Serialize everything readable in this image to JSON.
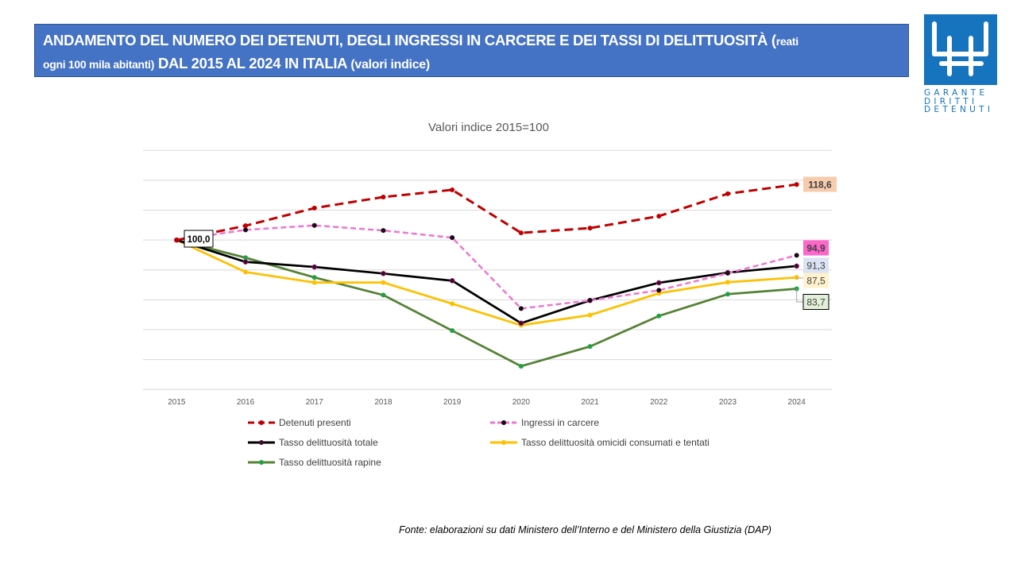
{
  "header": {
    "title_main": "ANDAMENTO DEL NUMERO DEI DETENUTI, DEGLI INGRESSI IN CARCERE  E DEI TASSI DI DELITTUOSITÀ (",
    "title_small_1": "reati",
    "title_small_2": "ogni 100 mila abitanti)",
    "title_line2_main": " DAL 2015 AL 2024 IN ITALIA ",
    "title_line2_tail": "(valori indice)",
    "background_color": "#4472c4"
  },
  "logo": {
    "lines": [
      "GARANTE",
      "DIRITTI",
      "DETENUTI"
    ],
    "icon": "garante-h-logo-icon",
    "color": "#1673bd"
  },
  "source_note": "Fonte: elaborazioni su dati Ministero dell’Interno e  del Ministero della Giustizia (DAP)",
  "chart_data": {
    "type": "line",
    "title": "Valori indice 2015=100",
    "xlabel": "",
    "ylabel": "",
    "x": [
      "2015",
      "2016",
      "2017",
      "2018",
      "2019",
      "2020",
      "2021",
      "2022",
      "2023",
      "2024"
    ],
    "ylim": [
      50,
      130
    ],
    "ytick_step": 10,
    "y_tick_labels_visible": false,
    "grid": true,
    "legend_position": "bottom",
    "series": [
      {
        "name": "Detenuti presenti",
        "color": "#c00000",
        "marker_color": "#c00000",
        "dash": "long-dash",
        "values": [
          100.0,
          104.8,
          110.7,
          114.4,
          116.8,
          102.4,
          104.0,
          108.0,
          115.5,
          118.6
        ],
        "end_label": "118,6",
        "end_label_bg": "#f8cbad",
        "end_label_border": "none"
      },
      {
        "name": "Ingressi in carcere",
        "color": "#ee76d0",
        "marker_color": "#1a0a14",
        "dash": "short-dash",
        "values": [
          100.0,
          103.4,
          104.9,
          103.2,
          100.8,
          77.1,
          79.8,
          83.2,
          88.9,
          94.9
        ],
        "end_label": "94,9",
        "end_label_bg": "#ff66cc",
        "end_label_border": "none"
      },
      {
        "name": "Tasso delittuosità totale",
        "color": "#000000",
        "marker_color": "#3d0a30",
        "dash": "solid",
        "values": [
          100.0,
          92.7,
          91.0,
          88.8,
          86.4,
          72.2,
          79.8,
          85.7,
          89.1,
          91.3
        ],
        "end_label": "91,3",
        "end_label_bg": "#dae3f3",
        "end_label_border": "none"
      },
      {
        "name": "Tasso delittuosità omicidi consumati e tentati",
        "color": "#ffc000",
        "marker_color": "#ffc000",
        "dash": "solid",
        "values": [
          100.0,
          89.3,
          85.8,
          85.8,
          78.7,
          71.5,
          74.9,
          82.2,
          85.9,
          87.5
        ],
        "end_label": "87,5",
        "end_label_bg": "#fff2cc",
        "end_label_border": "none"
      },
      {
        "name": "Tasso delittuosità rapine",
        "color": "#548235",
        "marker_color": "#22a045",
        "dash": "solid",
        "values": [
          100.0,
          94.1,
          87.5,
          81.6,
          69.7,
          57.8,
          64.4,
          74.6,
          81.9,
          83.7
        ],
        "end_label": "83,7",
        "end_label_bg": "#e2f0d9",
        "end_label_border": "#000000"
      }
    ],
    "annotations": [
      {
        "text": "100,0",
        "x": "2015",
        "y": 100.0,
        "bg": "#ffffff",
        "border": "#000000"
      }
    ]
  }
}
